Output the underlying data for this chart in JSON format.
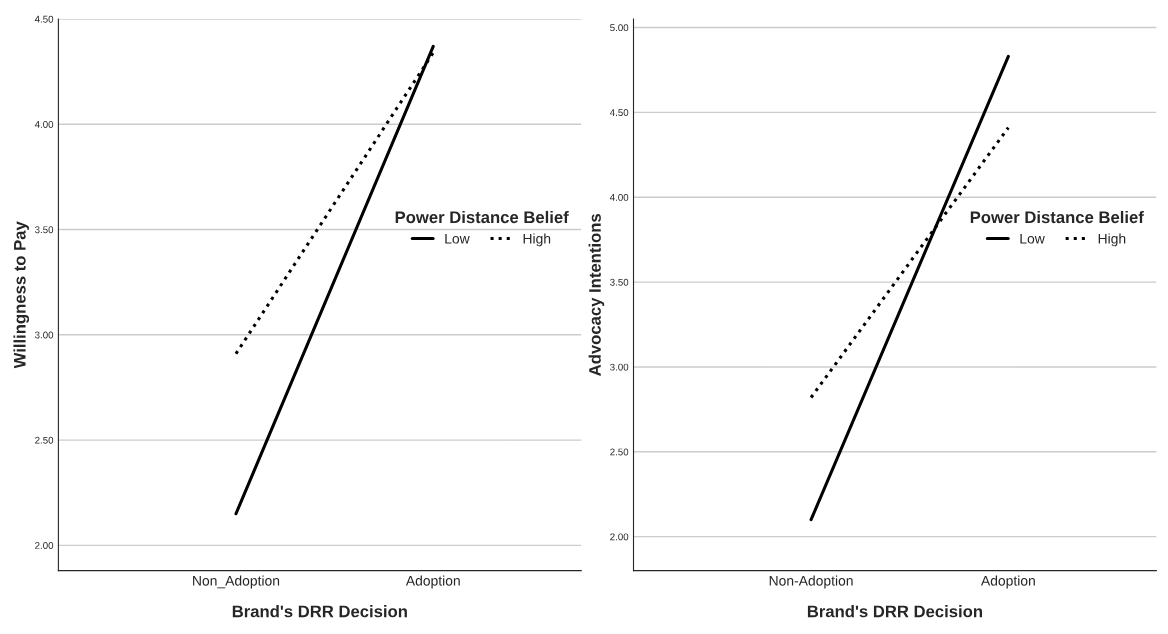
{
  "chart_data": [
    {
      "type": "line",
      "categories": [
        "Non_Adoption",
        "Adoption"
      ],
      "xlabel": "Brand's DRR Decision",
      "ylabel": "Willingness to Pay",
      "legend_title": "Power Distance Belief",
      "series": [
        {
          "name": "Low",
          "color": "#000000",
          "values": [
            2.15,
            4.37
          ],
          "line_style": "solid"
        },
        {
          "name": "High",
          "color": "#000000",
          "values": [
            2.91,
            4.34
          ],
          "line_style": "dotted"
        }
      ],
      "ylim": [
        1.88,
        4.5
      ],
      "yticks": [
        {
          "value": 2.0,
          "label": "2.00"
        },
        {
          "value": 2.5,
          "label": "2.50"
        },
        {
          "value": 3.0,
          "label": "3.00"
        },
        {
          "value": 3.5,
          "label": "3.50"
        },
        {
          "value": 4.0,
          "label": "4.00"
        },
        {
          "value": 4.5,
          "label": "4.50"
        }
      ],
      "grid": "y",
      "legend": "right"
    },
    {
      "type": "line",
      "categories": [
        "Non-Adoption",
        "Adoption"
      ],
      "xlabel": "Brand's DRR Decision",
      "ylabel": "Advocacy Intentions",
      "legend_title": "Power Distance Belief",
      "series": [
        {
          "name": "Low",
          "color": "#000000",
          "values": [
            2.1,
            4.83
          ],
          "line_style": "solid"
        },
        {
          "name": "High",
          "color": "#000000",
          "values": [
            2.82,
            4.41
          ],
          "line_style": "dotted"
        }
      ],
      "ylim": [
        1.8,
        5.05
      ],
      "yticks": [
        {
          "value": 2.0,
          "label": "2.00"
        },
        {
          "value": 2.5,
          "label": "2.50"
        },
        {
          "value": 3.0,
          "label": "3.00"
        },
        {
          "value": 3.5,
          "label": "3.50"
        },
        {
          "value": 4.0,
          "label": "4.00"
        },
        {
          "value": 4.5,
          "label": "4.50"
        },
        {
          "value": 5.0,
          "label": "5.00"
        }
      ],
      "grid": "y",
      "legend": "right"
    }
  ]
}
